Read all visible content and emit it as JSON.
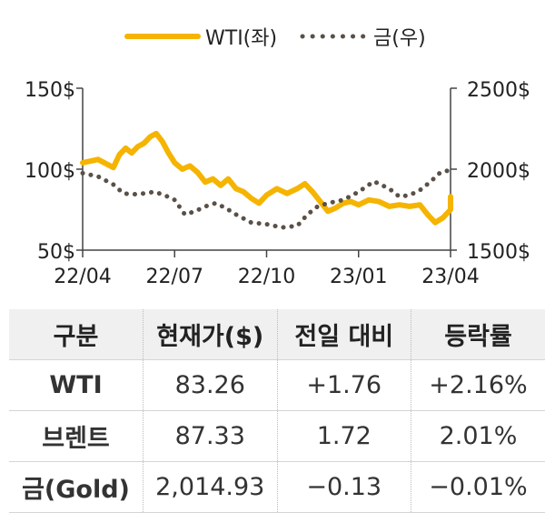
{
  "chart_data": {
    "type": "line",
    "title": "",
    "x_ticks": [
      "22/04",
      "22/07",
      "22/10",
      "23/01",
      "23/04"
    ],
    "y_left": {
      "ticks": [
        "150$",
        "100$",
        "50$"
      ],
      "range": [
        50,
        150
      ]
    },
    "y_right": {
      "ticks": [
        "2500$",
        "2000$",
        "1500$"
      ],
      "range": [
        1500,
        2500
      ]
    },
    "legend_position": "top-center",
    "series": [
      {
        "name": "WTI(좌)",
        "axis": "left",
        "style": "solid",
        "color": "#f5b400",
        "values": [
          [
            "22/04",
            104
          ],
          [
            "22/04",
            106
          ],
          [
            "22/05",
            101
          ],
          [
            "22/05",
            109
          ],
          [
            "22/05",
            113
          ],
          [
            "22/05",
            110
          ],
          [
            "22/05",
            114
          ],
          [
            "22/06",
            116
          ],
          [
            "22/06",
            120
          ],
          [
            "22/06",
            122
          ],
          [
            "22/06",
            117
          ],
          [
            "22/06",
            110
          ],
          [
            "22/07",
            104
          ],
          [
            "22/07",
            100
          ],
          [
            "22/07",
            102
          ],
          [
            "22/07",
            98
          ],
          [
            "22/08",
            92
          ],
          [
            "22/08",
            94
          ],
          [
            "22/08",
            90
          ],
          [
            "22/08",
            94
          ],
          [
            "22/09",
            88
          ],
          [
            "22/09",
            86
          ],
          [
            "22/09",
            82
          ],
          [
            "22/09",
            79
          ],
          [
            "22/10",
            84
          ],
          [
            "22/10",
            88
          ],
          [
            "22/10",
            85
          ],
          [
            "22/11",
            88
          ],
          [
            "22/11",
            91
          ],
          [
            "22/11",
            86
          ],
          [
            "22/11",
            80
          ],
          [
            "22/12",
            74
          ],
          [
            "22/12",
            76
          ],
          [
            "22/12",
            79
          ],
          [
            "22/12",
            80
          ],
          [
            "23/01",
            78
          ],
          [
            "23/01",
            81
          ],
          [
            "23/01",
            80
          ],
          [
            "23/02",
            77
          ],
          [
            "23/02",
            78
          ],
          [
            "23/02",
            77
          ],
          [
            "23/03",
            78
          ],
          [
            "23/03",
            72
          ],
          [
            "23/03",
            67
          ],
          [
            "23/03",
            70
          ],
          [
            "23/04",
            75
          ],
          [
            "23/04",
            80
          ],
          [
            "23/04",
            83
          ]
        ]
      },
      {
        "name": "금(우)",
        "axis": "right",
        "style": "dotted",
        "color": "#5a5048",
        "values": [
          [
            "22/04",
            1975
          ],
          [
            "22/04",
            1955
          ],
          [
            "22/05",
            1905
          ],
          [
            "22/05",
            1850
          ],
          [
            "22/05",
            1845
          ],
          [
            "22/06",
            1850
          ],
          [
            "22/06",
            1860
          ],
          [
            "22/06",
            1840
          ],
          [
            "22/07",
            1810
          ],
          [
            "22/07",
            1720
          ],
          [
            "22/07",
            1740
          ],
          [
            "22/08",
            1770
          ],
          [
            "22/08",
            1790
          ],
          [
            "22/08",
            1760
          ],
          [
            "22/09",
            1720
          ],
          [
            "22/09",
            1670
          ],
          [
            "22/10",
            1660
          ],
          [
            "22/10",
            1640
          ],
          [
            "22/11",
            1650
          ],
          [
            "22/11",
            1720
          ],
          [
            "22/11",
            1770
          ],
          [
            "22/12",
            1790
          ],
          [
            "22/12",
            1810
          ],
          [
            "23/01",
            1860
          ],
          [
            "23/01",
            1925
          ],
          [
            "23/02",
            1880
          ],
          [
            "23/02",
            1830
          ],
          [
            "23/02",
            1840
          ],
          [
            "23/03",
            1870
          ],
          [
            "23/03",
            1920
          ],
          [
            "23/03",
            1980
          ],
          [
            "23/04",
            1995
          ],
          [
            "23/04",
            2015
          ]
        ]
      }
    ]
  },
  "table": {
    "headers": [
      "구분",
      "현재가($)",
      "전일 대비",
      "등락률"
    ],
    "rows": [
      [
        "WTI",
        "83.26",
        "+1.76",
        "+2.16%"
      ],
      [
        "브렌트",
        "87.33",
        "1.72",
        "2.01%"
      ],
      [
        "금(Gold)",
        "2,014.93",
        "−0.13",
        "−0.01%"
      ]
    ]
  }
}
